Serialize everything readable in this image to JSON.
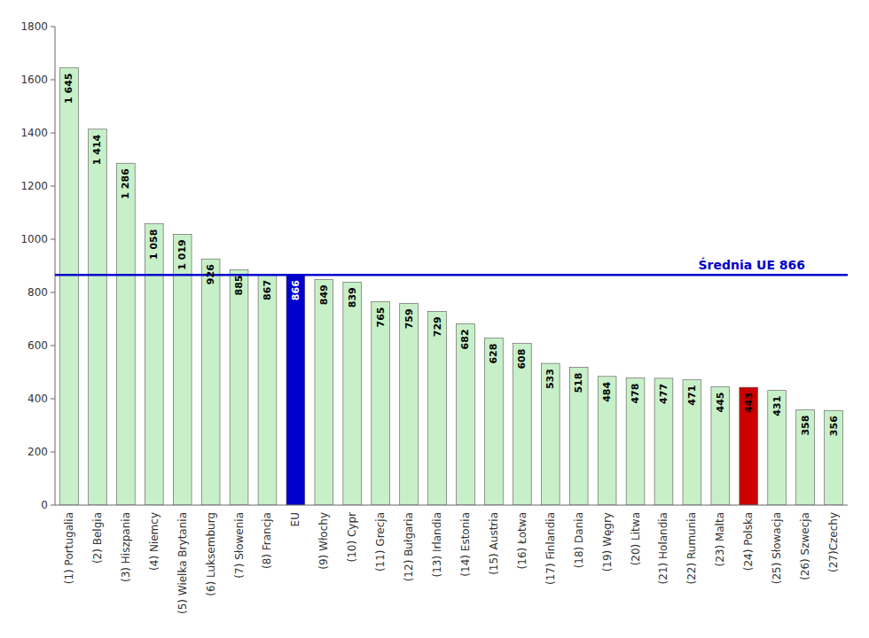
{
  "chart_data": {
    "type": "bar",
    "categories": [
      "(1) Portugalia",
      "(2) Belgia",
      "(3) Hiszpania",
      "(4) Niemcy",
      "(5) Wielka Brytania",
      "(6) Luksemburg",
      "(7) Słowenia",
      "(8) Francja",
      "EU",
      "(9) Włochy",
      "(10) Cypr",
      "(11) Grecja",
      "(12) Bułgaria",
      "(13) Irlandia",
      "(14) Estonia",
      "(15) Austria",
      "(16) Łotwa",
      "(17) Finlandia",
      "(18) Dania",
      "(19) Węgry",
      "(20) Litwa",
      "(21) Holandia",
      "(22) Rumunia",
      "(23) Malta",
      "(24) Polska",
      "(25) Słowacja",
      "(26) Szwecja",
      "(27)Czechy"
    ],
    "values": [
      1645,
      1414,
      1286,
      1058,
      1019,
      926,
      885,
      867,
      866,
      849,
      839,
      765,
      759,
      729,
      682,
      628,
      608,
      533,
      518,
      484,
      478,
      477,
      471,
      445,
      443,
      431,
      358,
      356
    ],
    "value_labels": [
      "1 645",
      "1 414",
      "1 286",
      "1 058",
      "1 019",
      "926",
      "885",
      "867",
      "866",
      "849",
      "839",
      "765",
      "759",
      "729",
      "682",
      "628",
      "608",
      "533",
      "518",
      "484",
      "478",
      "477",
      "471",
      "445",
      "443",
      "431",
      "358",
      "356"
    ],
    "data_labels": true,
    "colors": [
      "#c8f0c8",
      "#c8f0c8",
      "#c8f0c8",
      "#c8f0c8",
      "#c8f0c8",
      "#c8f0c8",
      "#c8f0c8",
      "#c8f0c8",
      "#0000cc",
      "#c8f0c8",
      "#c8f0c8",
      "#c8f0c8",
      "#c8f0c8",
      "#c8f0c8",
      "#c8f0c8",
      "#c8f0c8",
      "#c8f0c8",
      "#c8f0c8",
      "#c8f0c8",
      "#c8f0c8",
      "#c8f0c8",
      "#c8f0c8",
      "#c8f0c8",
      "#c8f0c8",
      "#cc0000",
      "#c8f0c8",
      "#c8f0c8",
      "#c8f0c8"
    ],
    "reference_line": {
      "value": 866,
      "label": "Średnia UE  866",
      "color": "#0000cc"
    },
    "ylim": [
      0,
      1800
    ],
    "yticks": [
      0,
      200,
      400,
      600,
      800,
      1000,
      1200,
      1400,
      1600,
      1800
    ],
    "grid": false
  }
}
